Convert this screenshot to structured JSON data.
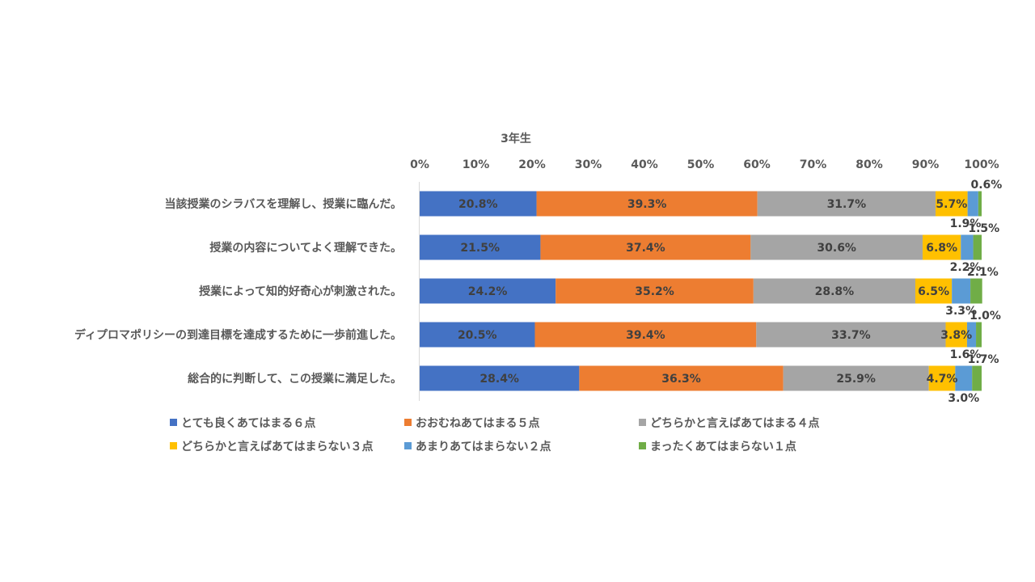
{
  "chart_data": {
    "type": "bar",
    "orientation": "horizontal",
    "stacked": "percent",
    "title": "3年生",
    "xlim": [
      0,
      100
    ],
    "xticks": [
      "0%",
      "10%",
      "20%",
      "30%",
      "40%",
      "50%",
      "60%",
      "70%",
      "80%",
      "90%",
      "100%"
    ],
    "categories": [
      "当該授業のシラバスを理解し、授業に臨んだ。",
      "授業の内容についてよく理解できた。",
      "授業によって知的好奇心が刺激された。",
      "ディプロマポリシーの到達目標を達成するために一歩前進した。",
      "総合的に判断して、この授業に満足した。"
    ],
    "series": [
      {
        "name": "とても良くあてはまる６点",
        "color": "#4472C4",
        "values": [
          20.8,
          21.5,
          24.2,
          20.5,
          28.4
        ],
        "labels": [
          "20.8%",
          "21.5%",
          "24.2%",
          "20.5%",
          "28.4%"
        ]
      },
      {
        "name": "おおむねあてはまる５点",
        "color": "#ED7D31",
        "values": [
          39.3,
          37.4,
          35.2,
          39.4,
          36.3
        ],
        "labels": [
          "39.3%",
          "37.4%",
          "35.2%",
          "39.4%",
          "36.3%"
        ]
      },
      {
        "name": "どちらかと言えばあてはまる４点",
        "color": "#A5A5A5",
        "values": [
          31.7,
          30.6,
          28.8,
          33.7,
          25.9
        ],
        "labels": [
          "31.7%",
          "30.6%",
          "28.8%",
          "33.7%",
          "25.9%"
        ]
      },
      {
        "name": "どちらかと言えばあてはまらない３点",
        "color": "#FFC000",
        "values": [
          5.7,
          6.8,
          6.5,
          3.8,
          4.7
        ],
        "labels": [
          "5.7%",
          "6.8%",
          "6.5%",
          "3.8%",
          "4.7%"
        ]
      },
      {
        "name": "あまりあてはまらない２点",
        "color": "#5B9BD5",
        "values": [
          1.9,
          2.2,
          3.3,
          1.6,
          3.0
        ],
        "labels": [
          "1.9%",
          "2.2%",
          "3.3%",
          "1.6%",
          "3.0%"
        ]
      },
      {
        "name": "まったくあてはまらない１点",
        "color": "#70AD47",
        "values": [
          0.6,
          1.5,
          2.1,
          1.0,
          1.7
        ],
        "labels": [
          "0.6%",
          "1.5%",
          "2.1%",
          "1.0%",
          "1.7%"
        ]
      }
    ],
    "legend_position": "bottom",
    "grid": false
  }
}
